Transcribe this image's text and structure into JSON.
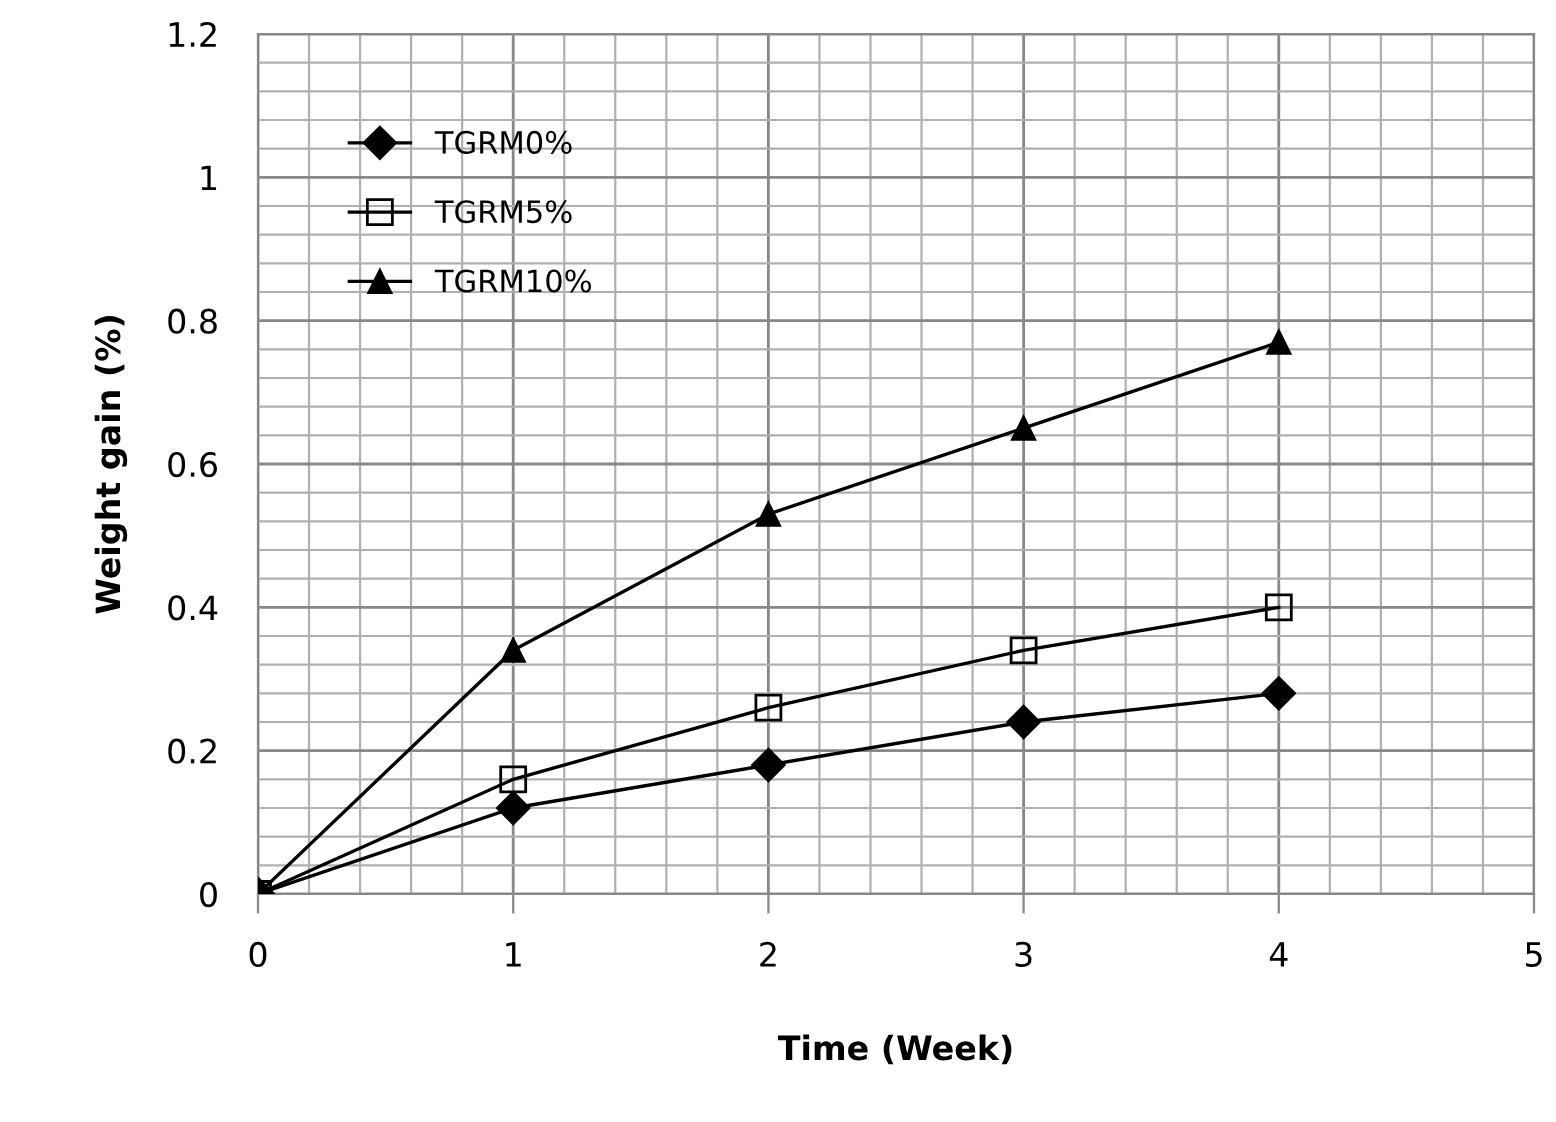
{
  "chart_data": {
    "type": "line",
    "xlabel": "Time (Week)",
    "ylabel": "Weight gain (%)",
    "x": [
      0,
      1,
      2,
      3,
      4
    ],
    "series": [
      {
        "name": "TGRM0%",
        "color": "#000000",
        "marker": "diamond",
        "values": [
          0,
          0.12,
          0.18,
          0.24,
          0.28
        ]
      },
      {
        "name": "TGRM5%",
        "color": "#000000",
        "marker": "square",
        "values": [
          0,
          0.16,
          0.26,
          0.34,
          0.4
        ]
      },
      {
        "name": "TGRM10%",
        "color": "#000000",
        "marker": "triangle",
        "values": [
          0,
          0.34,
          0.53,
          0.65,
          0.77
        ]
      }
    ],
    "xlim": [
      0,
      5
    ],
    "xticks": [
      0,
      1,
      2,
      3,
      4,
      5
    ],
    "ylim": [
      0,
      1.2
    ],
    "yticks": [
      0,
      0.2,
      0.4,
      0.6,
      0.8,
      1,
      1.2
    ],
    "grid": true,
    "legend": "top left",
    "line_style": "solid"
  }
}
